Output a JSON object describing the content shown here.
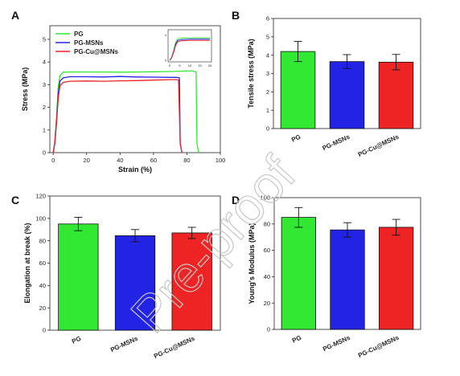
{
  "watermark": "Pre-proof",
  "colors": {
    "PG": "#33e833",
    "PG-MSNs": "#2323e6",
    "PG-Cu@MSNs": "#ee2323"
  },
  "chart_data": [
    {
      "panel": "A",
      "type": "line",
      "xlabel": "Strain  (%)",
      "ylabel": "Stress (MPa)",
      "xlim": [
        -2,
        100
      ],
      "ylim": [
        0,
        5.6
      ],
      "xticks": [
        "0",
        "20",
        "40",
        "60",
        "80",
        "100"
      ],
      "yticks": [
        "0",
        "1",
        "2",
        "3",
        "4",
        "5"
      ],
      "legend_position": "top-left",
      "series": [
        {
          "name": "PG",
          "color": "#33e833",
          "x": [
            0,
            1,
            2,
            3,
            4,
            6,
            10,
            20,
            30,
            40,
            50,
            60,
            70,
            80,
            84,
            85.5,
            86,
            87
          ],
          "y": [
            0,
            0.5,
            1.6,
            2.9,
            3.4,
            3.55,
            3.56,
            3.56,
            3.56,
            3.55,
            3.56,
            3.57,
            3.58,
            3.6,
            3.6,
            3.55,
            0.4,
            0
          ]
        },
        {
          "name": "PG-MSNs",
          "color": "#2323e6",
          "x": [
            0,
            1,
            2,
            3,
            4,
            6,
            10,
            20,
            30,
            40,
            50,
            60,
            70,
            74,
            75.5,
            76,
            77
          ],
          "y": [
            0,
            0.45,
            1.4,
            2.6,
            3.15,
            3.3,
            3.35,
            3.35,
            3.34,
            3.36,
            3.34,
            3.33,
            3.32,
            3.32,
            3.3,
            0.4,
            0
          ]
        },
        {
          "name": "PG-Cu@MSNs",
          "color": "#ee2323",
          "x": [
            0,
            1,
            2,
            3,
            4,
            6,
            10,
            20,
            30,
            40,
            50,
            60,
            70,
            74,
            75,
            76,
            77
          ],
          "y": [
            0,
            0.4,
            1.3,
            2.4,
            2.95,
            3.1,
            3.15,
            3.16,
            3.15,
            3.17,
            3.18,
            3.2,
            3.22,
            3.22,
            3.2,
            0.4,
            0
          ]
        }
      ],
      "inset": {
        "xticks": [
          "0",
          "5",
          "10",
          "15",
          "20"
        ],
        "yticks": [
          "0",
          "4"
        ]
      }
    },
    {
      "panel": "B",
      "type": "bar",
      "ylabel": "Tensile stress (MPa)",
      "ylim": [
        0,
        6
      ],
      "yticks": [
        "0",
        "1",
        "2",
        "3",
        "4",
        "5",
        "6"
      ],
      "categories": [
        "PG",
        "PG-MSNs",
        "PG-Cu@MSNs"
      ],
      "values": [
        4.2,
        3.65,
        3.62
      ],
      "errors": [
        0.55,
        0.38,
        0.42
      ]
    },
    {
      "panel": "C",
      "type": "bar",
      "ylabel": "Elongation at break (%)",
      "ylim": [
        0,
        120
      ],
      "yticks": [
        "0",
        "20",
        "40",
        "60",
        "80",
        "100",
        "120"
      ],
      "categories": [
        "PG",
        "PG-MSNs",
        "PG-Cu@MSNs"
      ],
      "values": [
        95,
        84.5,
        87
      ],
      "errors": [
        6,
        5.5,
        5
      ]
    },
    {
      "panel": "D",
      "type": "bar",
      "ylabel": "Young's Modulus (MPa)",
      "ylim": [
        0,
        100
      ],
      "yticks": [
        "0",
        "20",
        "40",
        "60",
        "80",
        "100"
      ],
      "categories": [
        "PG",
        "PG-MSNs",
        "PG-Cu@MSNs"
      ],
      "values": [
        85,
        75.5,
        77.5
      ],
      "errors": [
        7.5,
        5.5,
        6
      ]
    }
  ]
}
